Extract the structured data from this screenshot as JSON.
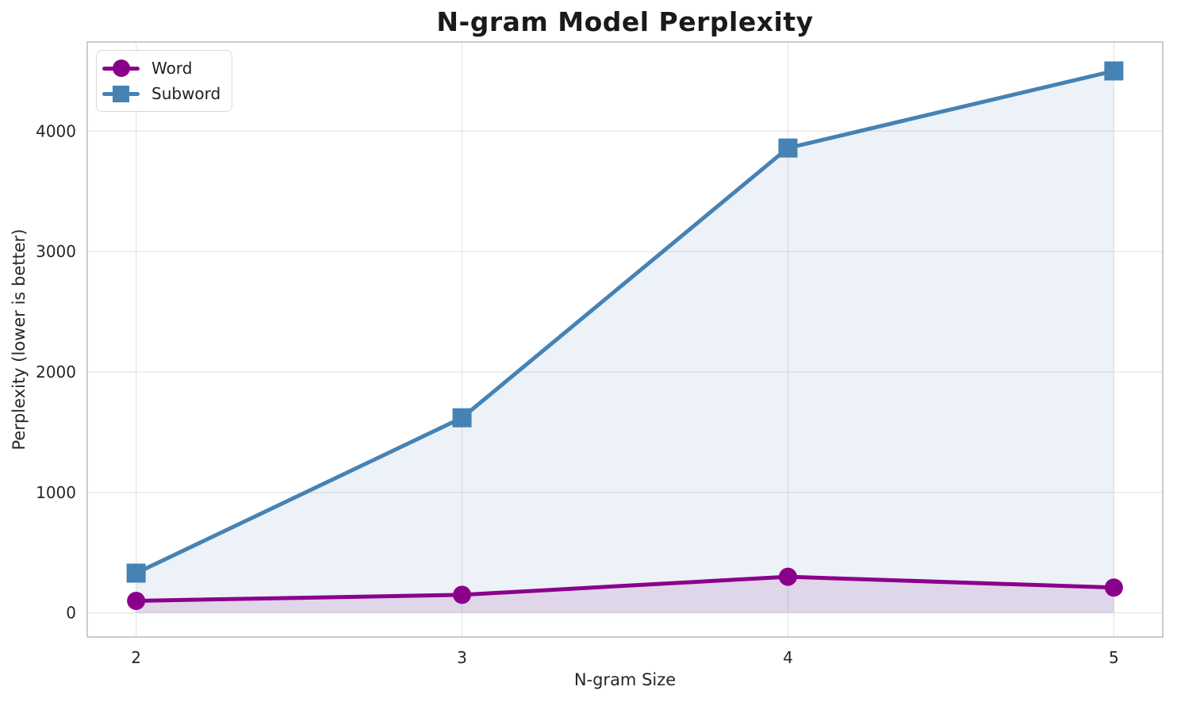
{
  "chart_data": {
    "type": "line",
    "title": "N-gram Model Perplexity",
    "xlabel": "N-gram Size",
    "ylabel": "Perplexity (lower is better)",
    "x": [
      2,
      3,
      4,
      5
    ],
    "series": [
      {
        "name": "Word",
        "values": [
          100,
          150,
          300,
          210
        ],
        "color": "#8B008B",
        "marker": "circle",
        "fill_alpha": 0.12
      },
      {
        "name": "Subword",
        "values": [
          330,
          1620,
          3860,
          4500
        ],
        "color": "#4682B4",
        "marker": "square",
        "fill_alpha": 0.1
      }
    ],
    "xticks": [
      2,
      3,
      4,
      5
    ],
    "yticks": [
      0,
      1000,
      2000,
      3000,
      4000
    ],
    "xlim": [
      1.85,
      5.15
    ],
    "ylim": [
      -200,
      4740
    ],
    "grid": true,
    "area_fill_baseline": 0,
    "legend_position": "upper-left"
  },
  "colors": {
    "grid": "#e8e8e8",
    "spine": "#cccccc",
    "tick_text": "#262626",
    "title_text": "#1a1a1a"
  }
}
